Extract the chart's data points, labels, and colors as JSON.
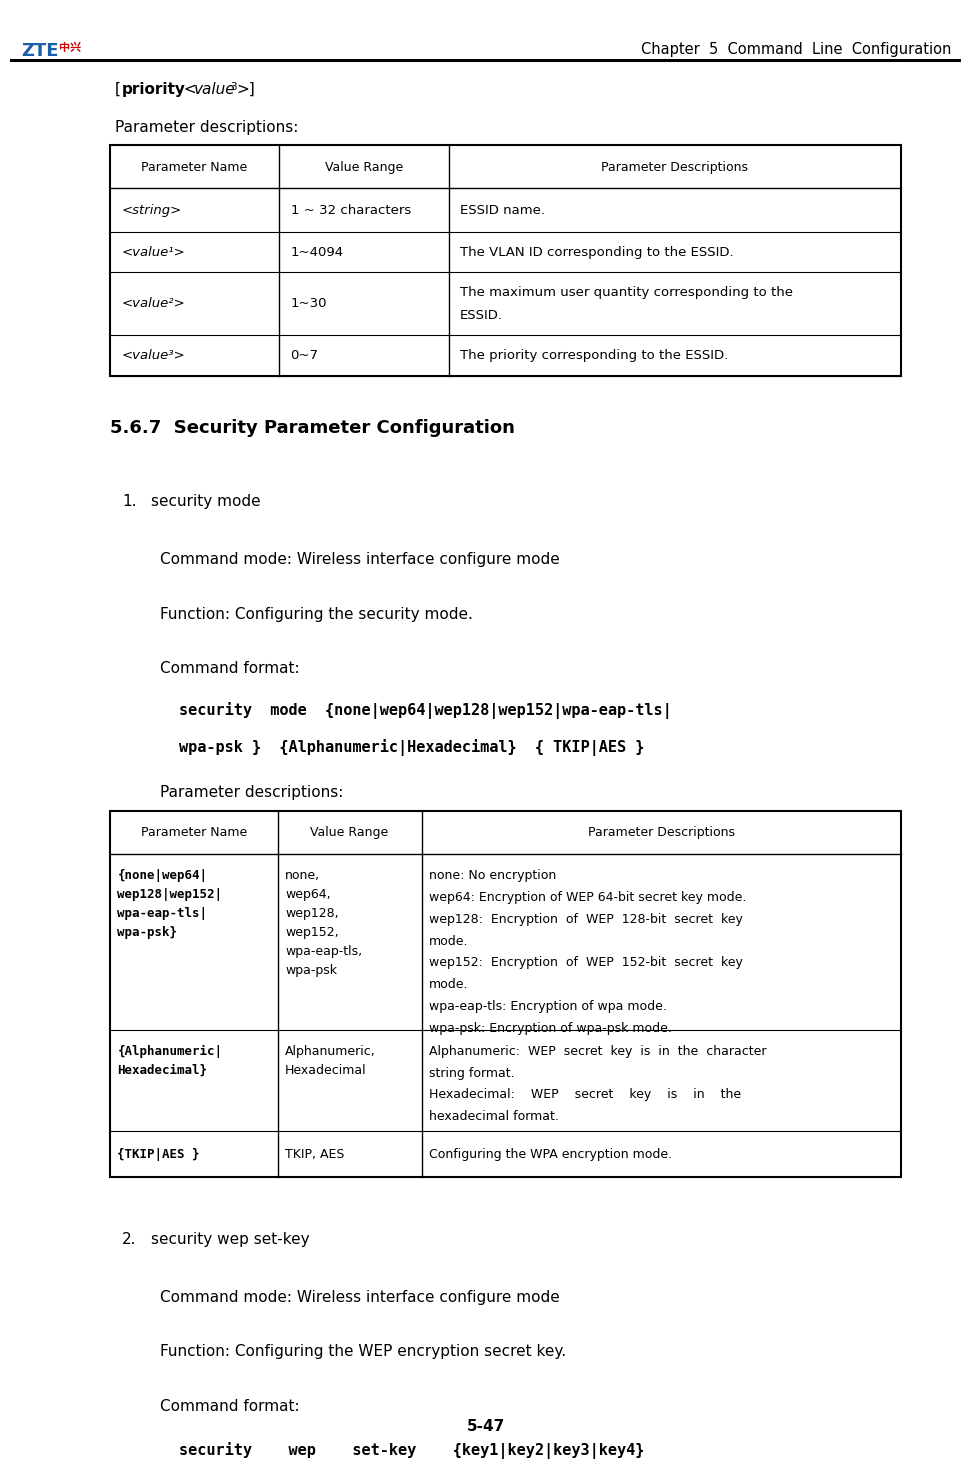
{
  "page_width": 9.51,
  "page_height": 14.41,
  "bg_color": "#ffffff",
  "header_title": "Chapter  5  Command  Line  Configuration",
  "footer_text": "5-47",
  "param_desc_label": "Parameter descriptions:",
  "table1_headers": [
    "Parameter Name",
    "Value Range",
    "Parameter Descriptions"
  ],
  "table1_rows": [
    [
      "<string>",
      "1 ~ 32 characters",
      "ESSID name.",
      "string"
    ],
    [
      "<value¹>",
      "1~4094",
      "The VLAN ID corresponding to the ESSID.",
      "value"
    ],
    [
      "<value²>",
      "1~30",
      "The maximum user quantity corresponding to the\nESSID.",
      "value"
    ],
    [
      "<value³>",
      "0~7",
      "The priority corresponding to the ESSID.",
      "value"
    ]
  ],
  "section_title": "5.6.7  Security Parameter Configuration",
  "item1_title": "security mode",
  "item1_cmdmode": "Command mode: Wireless interface configure mode",
  "item1_function": "Function: Configuring the security mode.",
  "item1_cmdfmt_label": "Command format:",
  "item1_cmdfmt_line1": "security  mode  {none|wep64|wep128|wep152|wpa-eap-tls|",
  "item1_cmdfmt_line2": "wpa-psk }  {Alphanumeric|Hexadecimal}  { TKIP|AES }",
  "param_desc_label2": "Parameter descriptions:",
  "table2_headers": [
    "Parameter Name",
    "Value Range",
    "Parameter Descriptions"
  ],
  "table2_row1_col1": "{none|wep64|\nwep128|wep152|\nwpa-eap-tls|\nwpa-psk}",
  "table2_row1_col2": "none,\nwep64,\nwep128,\nwep152,\nwpa-eap-tls,\nwpa-psk",
  "table2_row1_col3_lines": [
    "none: No encryption",
    "wep64: Encryption of WEP 64-bit secret key mode.",
    "wep128:  Encryption  of  WEP  128-bit  secret  key",
    "mode.",
    "wep152:  Encryption  of  WEP  152-bit  secret  key",
    "mode.",
    "wpa-eap-tls: Encryption of wpa mode.",
    "wpa-psk: Encryption of wpa-psk mode."
  ],
  "table2_row2_col1": "{Alphanumeric|\nHexadecimal}",
  "table2_row2_col2": "Alphanumeric,\nHexadecimal",
  "table2_row2_col3_lines": [
    "Alphanumeric:  WEP  secret  key  is  in  the  character",
    "string format.",
    "Hexadecimal:    WEP    secret    key    is    in    the",
    "hexadecimal format."
  ],
  "table2_row3_col1": "{TKIP|AES }",
  "table2_row3_col2": "TKIP, AES",
  "table2_row3_col3": "Configuring the WPA encryption mode.",
  "item2_title": "security wep set-key",
  "item2_cmdmode": "Command mode: Wireless interface configure mode",
  "item2_function": "Function: Configuring the WEP encryption secret key.",
  "item2_cmdfmt_label": "Command format:",
  "item2_cmdfmt": "security    wep    set-key    {key1|key2|key3|key4}"
}
